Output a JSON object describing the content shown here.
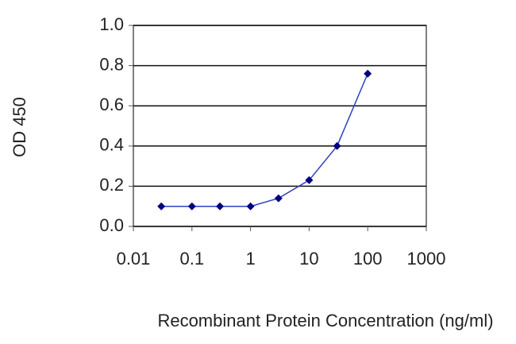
{
  "chart_data": {
    "type": "line",
    "xlabel": "Recombinant Protein Concentration (ng/ml)",
    "ylabel": "OD 450",
    "x": [
      0.03,
      0.1,
      0.3,
      1,
      3,
      10,
      30,
      100
    ],
    "series": [
      {
        "color": "#000080",
        "values": [
          0.1,
          0.1,
          0.1,
          0.1,
          0.14,
          0.23,
          0.4,
          0.76
        ]
      }
    ],
    "xscale": "log",
    "xlim": [
      0.01,
      1000
    ],
    "xticks": [
      0.01,
      0.1,
      1,
      10,
      100,
      1000
    ],
    "ylim": [
      0,
      1
    ],
    "yticks": [
      {
        "value": 0,
        "label": "0.0"
      },
      0.2,
      0.4,
      0.6,
      0.8,
      {
        "value": 1,
        "label": "1.0"
      }
    ],
    "grid": true
  }
}
